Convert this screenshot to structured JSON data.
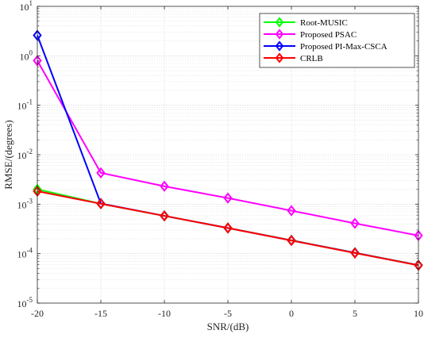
{
  "chart_data": {
    "type": "line",
    "title": "",
    "xlabel": "SNR/(dB)",
    "ylabel": "RMSE/(degrees)",
    "x": [
      -20,
      -15,
      -10,
      -5,
      0,
      5,
      10
    ],
    "xlim": [
      -20,
      10
    ],
    "ylim": [
      1e-05,
      10
    ],
    "yscale": "log",
    "x_tick_labels": [
      "-20",
      "-15",
      "-10",
      "-5",
      "0",
      "5",
      "10"
    ],
    "y_tick_labels": [
      {
        "base": "10",
        "exp": "-5"
      },
      {
        "base": "10",
        "exp": "-4"
      },
      {
        "base": "10",
        "exp": "-3"
      },
      {
        "base": "10",
        "exp": "-2"
      },
      {
        "base": "10",
        "exp": "-1"
      },
      {
        "base": "10",
        "exp": "0"
      },
      {
        "base": "10",
        "exp": "1"
      }
    ],
    "grid": true,
    "legend_position": "top-right",
    "marker": "diamond",
    "series": [
      {
        "name": "Root-MUSIC",
        "color": "#00ff00",
        "values": [
          0.002,
          0.00102,
          0.00058,
          0.00033,
          0.000186,
          0.000104,
          5.85e-05
        ]
      },
      {
        "name": "Proposed PSAC",
        "color": "#ff00ff",
        "values": [
          0.8,
          0.0043,
          0.0023,
          0.00133,
          0.00074,
          0.00041,
          0.000232
        ]
      },
      {
        "name": "Proposed PI-Max-CSCA",
        "color": "#0000ff",
        "values": [
          2.6,
          0.00103,
          0.00058,
          0.00033,
          0.000185,
          0.000104,
          5.83e-05
        ]
      },
      {
        "name": "CRLB",
        "color": "#ff0000",
        "values": [
          0.00183,
          0.00102,
          0.00058,
          0.00033,
          0.000184,
          0.000103,
          5.8e-05
        ]
      }
    ]
  }
}
